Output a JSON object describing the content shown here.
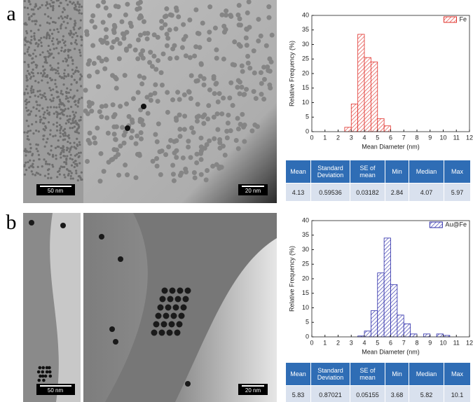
{
  "panels": [
    "a",
    "b"
  ],
  "scale_bars": [
    [
      "50 nm",
      "20 nm"
    ],
    [
      "50 nm",
      "20 nm"
    ]
  ],
  "chart_data": [
    {
      "type": "histogram",
      "xlabel": "Mean Diameter (nm)",
      "ylabel": "Relative Frequency (%)",
      "bins": [
        2.5,
        3,
        3.5,
        4,
        4.5,
        5,
        5.5,
        6
      ],
      "series": [
        {
          "name": "Fe",
          "color": "#e0302a",
          "values": [
            1.5,
            9.5,
            33.5,
            25.5,
            24,
            4.5,
            2
          ]
        }
      ],
      "xlim": [
        0,
        12
      ],
      "xticks": [
        0,
        1,
        2,
        3,
        4,
        5,
        6,
        7,
        8,
        9,
        10,
        11,
        12
      ],
      "ylim": [
        0,
        40
      ],
      "yticks": [
        0,
        5,
        10,
        15,
        20,
        25,
        30,
        35,
        40
      ],
      "legend": "upper right"
    },
    {
      "type": "histogram",
      "xlabel": "Mean Diameter (nm)",
      "ylabel": "Relative Frequency (%)",
      "bins": [
        3.5,
        4,
        4.5,
        5,
        5.5,
        6,
        6.5,
        7,
        7.5,
        8,
        8.5,
        9,
        9.5,
        10,
        10.5
      ],
      "series": [
        {
          "name": "Au@Fe",
          "color": "#2a2aa8",
          "values": [
            0.3,
            2,
            9,
            22,
            34,
            18,
            7.5,
            4.5,
            1,
            0,
            1,
            0,
            1,
            0.5
          ]
        }
      ],
      "xlim": [
        0,
        12
      ],
      "xticks": [
        0,
        1,
        2,
        3,
        4,
        5,
        6,
        7,
        8,
        9,
        10,
        11,
        12
      ],
      "ylim": [
        0,
        40
      ],
      "yticks": [
        0,
        5,
        10,
        15,
        20,
        25,
        30,
        35,
        40
      ],
      "legend": "upper right"
    }
  ],
  "tables": [
    {
      "header": [
        "Mean",
        "Standard Deviation",
        "SE of mean",
        "Min",
        "Median",
        "Max"
      ],
      "rows": [
        [
          4.13,
          0.59536,
          0.03182,
          2.84,
          4.07,
          5.97
        ]
      ]
    },
    {
      "header": [
        "Mean",
        "Standard Deviation",
        "SE of mean",
        "Min",
        "Median",
        "Max"
      ],
      "rows": [
        [
          5.83,
          0.87021,
          0.05155,
          3.68,
          5.82,
          10.1
        ]
      ]
    }
  ]
}
